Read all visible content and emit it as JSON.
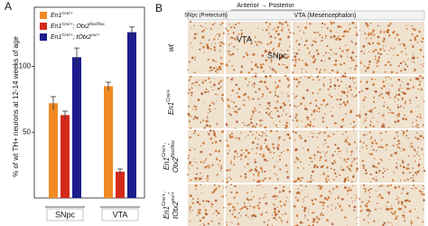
{
  "panel_a": {
    "label": "A"
  },
  "chart_data": {
    "type": "bar",
    "ylabel": "% of wt TH+ neurons at 12-14 weeks of age",
    "categories": [
      "SNpc",
      "VTA"
    ],
    "ylim": [
      0,
      145
    ],
    "yticks": [
      50,
      100
    ],
    "series": [
      {
        "name": [
          "En1",
          "Cre/+"
        ],
        "color": "#f08a24",
        "values": [
          72,
          85
        ],
        "errors": [
          5,
          3
        ]
      },
      {
        "name": [
          "En1",
          "Cre/+",
          "; Otx2",
          "flox/flox"
        ],
        "color": "#d42a1a",
        "values": [
          63,
          20
        ],
        "errors": [
          3,
          2
        ]
      },
      {
        "name": [
          "En1",
          "Cre/+",
          "; tOtx2",
          "ov/+"
        ],
        "color": "#1c1c8e",
        "values": [
          107,
          126
        ],
        "errors": [
          7,
          4
        ]
      }
    ]
  },
  "panel_b": {
    "label": "B",
    "direction": "Anterior → Posterior",
    "headers": [
      "SNpc (Pretectum)",
      "VTA (Mesencephalon)"
    ],
    "image_labels": [
      "VTA",
      "SNpc"
    ],
    "rows": [
      [
        [
          "wt"
        ]
      ],
      [
        [
          "En1",
          "Cre/+"
        ]
      ],
      [
        [
          "En1",
          "Cre/+",
          ";"
        ],
        [
          "Otx2",
          "flox/flox"
        ]
      ],
      [
        [
          "En1",
          "Cre/+",
          ";"
        ],
        [
          "tOtx2",
          "ov/+"
        ]
      ]
    ]
  }
}
